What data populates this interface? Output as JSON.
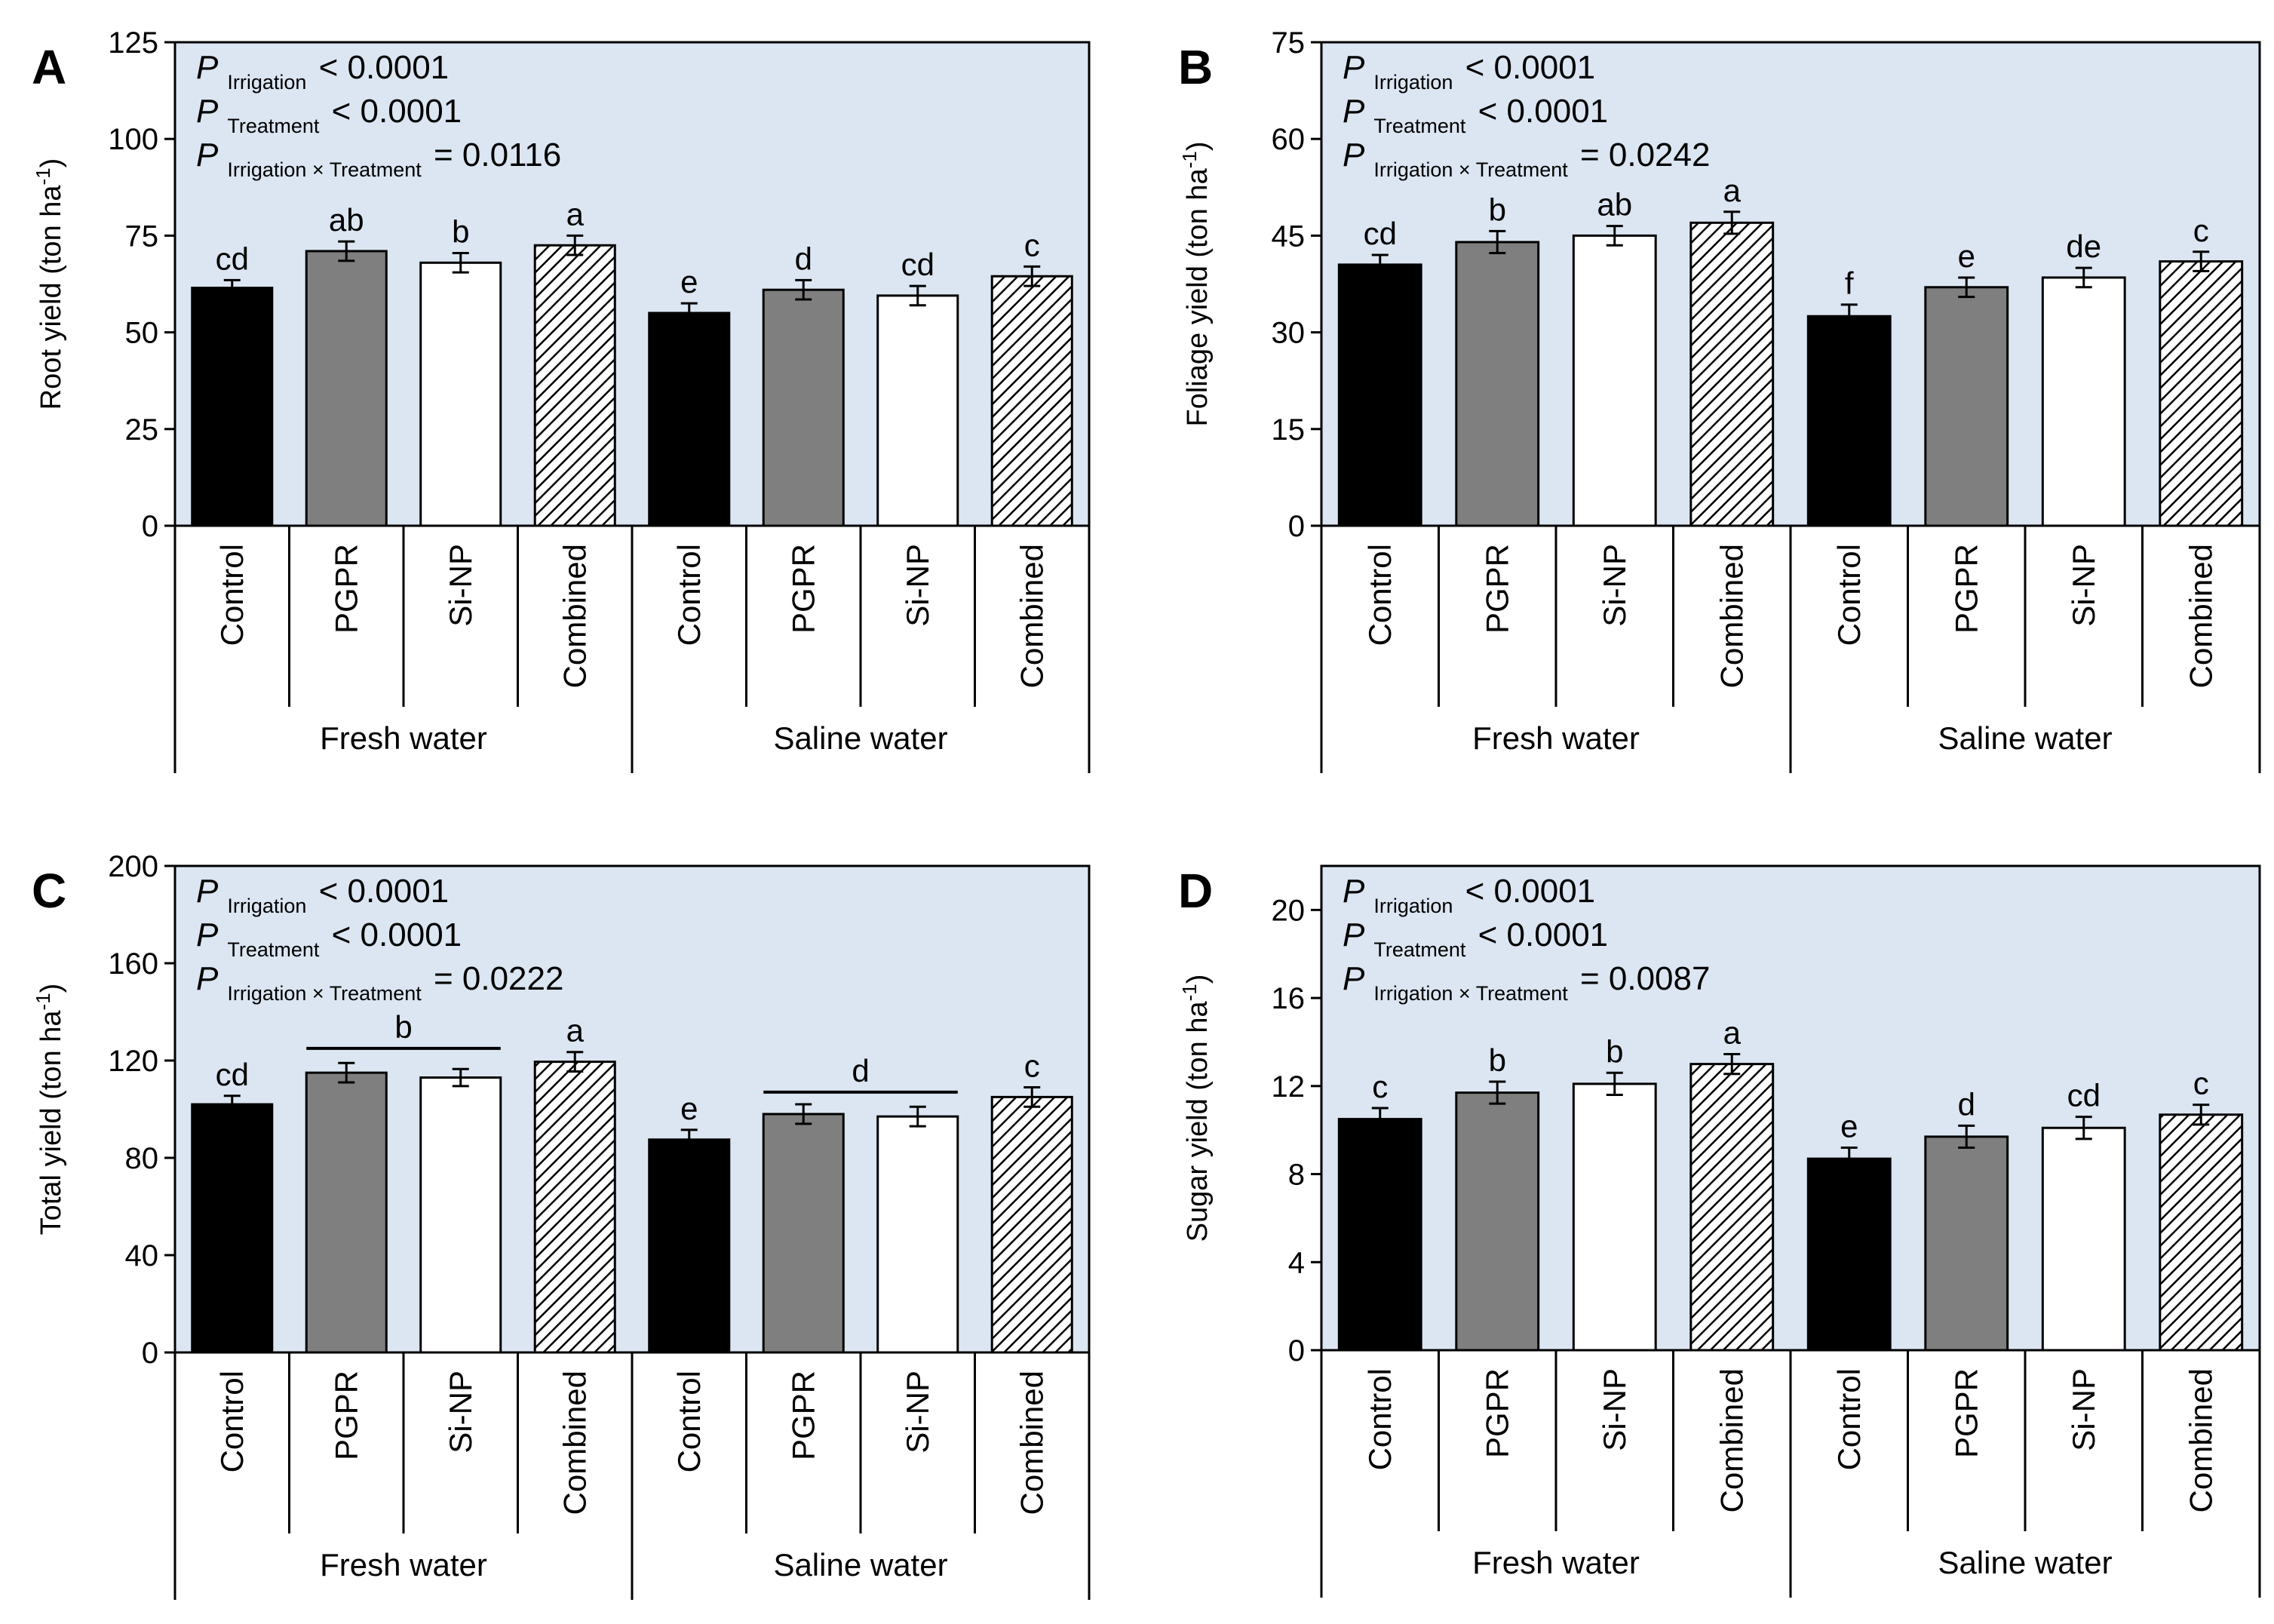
{
  "figure": {
    "categories": [
      "Control",
      "PGPR",
      "Si-NP",
      "Combined",
      "Control",
      "PGPR",
      "Si-NP",
      "Combined"
    ],
    "groups": [
      "Fresh water",
      "Saline water"
    ],
    "colors": {
      "background": "#dce6f2",
      "control": "#000000",
      "pgpr": "#7f7f7f",
      "sinp": "#ffffff",
      "combined": "hatched"
    }
  },
  "chart_data": [
    {
      "type": "bar",
      "panel_label": "A",
      "ylabel": "Root yield (ton ha-1)",
      "ylim": [
        0,
        125
      ],
      "yticks": [
        0,
        25,
        50,
        75,
        100,
        125
      ],
      "categories": [
        "Control",
        "PGPR",
        "Si-NP",
        "Combined",
        "Control",
        "PGPR",
        "Si-NP",
        "Combined"
      ],
      "values": [
        61.5,
        71,
        68,
        72.5,
        55,
        61,
        59.5,
        64.5
      ],
      "errors": [
        2,
        2.5,
        2.5,
        2.5,
        2.5,
        2.5,
        2.5,
        2.5
      ],
      "letters": [
        "cd",
        "ab",
        "b",
        "a",
        "e",
        "d",
        "cd",
        "c"
      ],
      "shared_letters": [],
      "stats": [
        {
          "main": "P",
          "sub": "Irrigation",
          "rest": " < 0.0001"
        },
        {
          "main": "P",
          "sub": "Treatment",
          "rest": " < 0.0001"
        },
        {
          "main": "P",
          "sub": "Irrigation × Treatment",
          "rest": " = 0.0116"
        }
      ]
    },
    {
      "type": "bar",
      "panel_label": "B",
      "ylabel": "Foliage  yield (ton ha-1)",
      "ylim": [
        0,
        75
      ],
      "yticks": [
        0,
        15,
        30,
        45,
        60,
        75
      ],
      "categories": [
        "Control",
        "PGPR",
        "Si-NP",
        "Combined",
        "Control",
        "PGPR",
        "Si-NP",
        "Combined"
      ],
      "values": [
        40.5,
        44,
        45,
        47,
        32.5,
        37,
        38.5,
        41
      ],
      "errors": [
        1.5,
        1.7,
        1.5,
        1.7,
        1.8,
        1.5,
        1.5,
        1.5
      ],
      "letters": [
        "cd",
        "b",
        "ab",
        "a",
        "f",
        "e",
        "de",
        "c"
      ],
      "shared_letters": [],
      "stats": [
        {
          "main": "P",
          "sub": "Irrigation",
          "rest": " < 0.0001"
        },
        {
          "main": "P",
          "sub": "Treatment",
          "rest": " < 0.0001"
        },
        {
          "main": "P",
          "sub": "Irrigation × Treatment",
          "rest": " = 0.0242"
        }
      ]
    },
    {
      "type": "bar",
      "panel_label": "C",
      "ylabel": "Total  yield (ton ha-1)",
      "ylim": [
        0,
        200
      ],
      "yticks": [
        0,
        40,
        80,
        120,
        160,
        200
      ],
      "categories": [
        "Control",
        "PGPR",
        "Si-NP",
        "Combined",
        "Control",
        "PGPR",
        "Si-NP",
        "Combined"
      ],
      "values": [
        102,
        115,
        113,
        119.5,
        87.5,
        98,
        97,
        105
      ],
      "errors": [
        3.5,
        4,
        3.5,
        4,
        4,
        4,
        4,
        4
      ],
      "letters": [
        "cd",
        "",
        "",
        "a",
        "e",
        "",
        "",
        "c"
      ],
      "shared_letters": [
        {
          "from": 1,
          "to": 2,
          "label": "b",
          "value": 125
        },
        {
          "from": 5,
          "to": 6,
          "label": "d",
          "value": 107
        }
      ],
      "stats": [
        {
          "main": "P",
          "sub": "Irrigation",
          "rest": " < 0.0001"
        },
        {
          "main": "P",
          "sub": "Treatment",
          "rest": " < 0.0001"
        },
        {
          "main": "P",
          "sub": "Irrigation × Treatment",
          "rest": " = 0.0222"
        }
      ]
    },
    {
      "type": "bar",
      "panel_label": "D",
      "ylabel": "Sugar yield (ton ha-1)",
      "ylim": [
        0,
        22
      ],
      "yticks": [
        0,
        4,
        8,
        12,
        16,
        20
      ],
      "categories": [
        "Control",
        "PGPR",
        "Si-NP",
        "Combined",
        "Control",
        "PGPR",
        "Si-NP",
        "Combined"
      ],
      "values": [
        10.5,
        11.7,
        12.1,
        13,
        8.7,
        9.7,
        10.1,
        10.7
      ],
      "errors": [
        0.5,
        0.5,
        0.5,
        0.45,
        0.5,
        0.5,
        0.5,
        0.45
      ],
      "letters": [
        "c",
        "b",
        "b",
        "a",
        "e",
        "d",
        "cd",
        "c"
      ],
      "shared_letters": [],
      "stats": [
        {
          "main": "P",
          "sub": "Irrigation",
          "rest": " < 0.0001"
        },
        {
          "main": "P",
          "sub": "Treatment",
          "rest": " < 0.0001"
        },
        {
          "main": "P",
          "sub": "Irrigation × Treatment",
          "rest": " = 0.0087"
        }
      ]
    }
  ]
}
